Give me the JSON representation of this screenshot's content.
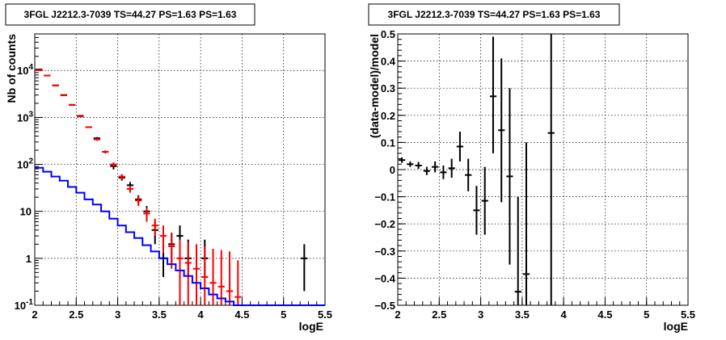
{
  "colors": {
    "data": "#000000",
    "model": "#ff0000",
    "background_model": "#0000ff"
  },
  "chart_data": [
    {
      "type": "scatter",
      "title": "3FGL J2212.3-7039 TS=44.27 PS=1.63 PS=1.63",
      "xlabel": "logE",
      "ylabel": "Nb of counts",
      "xlim": [
        2,
        5.5
      ],
      "ylim": [
        0.1,
        60000
      ],
      "yscale": "log",
      "grid": true,
      "x_ticks": [
        "2",
        "2.5",
        "3",
        "3.5",
        "4",
        "4.5",
        "5",
        "5.5"
      ],
      "y_ticks": [
        "10^-1",
        "1",
        "10",
        "10^2",
        "10^3",
        "10^4"
      ],
      "series": [
        {
          "style": "errorbars",
          "color": "#000000",
          "points": [
            {
              "x": 2.05,
              "y": 10500,
              "lo": 10300,
              "hi": 10700
            },
            {
              "x": 2.15,
              "y": 7800,
              "lo": 7650,
              "hi": 7950
            },
            {
              "x": 2.25,
              "y": 4800,
              "lo": 4680,
              "hi": 4920
            },
            {
              "x": 2.35,
              "y": 3000,
              "lo": 2920,
              "hi": 3080
            },
            {
              "x": 2.45,
              "y": 1850,
              "lo": 1800,
              "hi": 1900
            },
            {
              "x": 2.55,
              "y": 1080,
              "lo": 1040,
              "hi": 1120
            },
            {
              "x": 2.65,
              "y": 620,
              "lo": 595,
              "hi": 645
            },
            {
              "x": 2.75,
              "y": 360,
              "lo": 340,
              "hi": 380
            },
            {
              "x": 2.85,
              "y": 185,
              "lo": 172,
              "hi": 198
            },
            {
              "x": 2.95,
              "y": 92,
              "lo": 78,
              "hi": 108
            },
            {
              "x": 3.05,
              "y": 52,
              "lo": 45,
              "hi": 60
            },
            {
              "x": 3.15,
              "y": 36,
              "lo": 30,
              "hi": 42
            },
            {
              "x": 3.25,
              "y": 18,
              "lo": 14,
              "hi": 22
            },
            {
              "x": 3.35,
              "y": 10,
              "lo": 7,
              "hi": 13
            },
            {
              "x": 3.45,
              "y": 4,
              "lo": 2,
              "hi": 6
            },
            {
              "x": 3.55,
              "y": 1,
              "lo": 0.4,
              "hi": 2.5
            },
            {
              "x": 3.65,
              "y": 2,
              "lo": 0.8,
              "hi": 3.5
            },
            {
              "x": 3.75,
              "y": 3,
              "lo": 1.3,
              "hi": 5
            },
            {
              "x": 3.85,
              "y": 1,
              "lo": 0.4,
              "hi": 2.5
            },
            {
              "x": 4.05,
              "y": 1,
              "lo": 0.4,
              "hi": 2.5
            },
            {
              "x": 5.25,
              "y": 1,
              "lo": 0.2,
              "hi": 2
            }
          ]
        },
        {
          "style": "errorbars",
          "color": "#ff0000",
          "points": [
            {
              "x": 2.05,
              "y": 10200,
              "lo": 10000,
              "hi": 10400
            },
            {
              "x": 2.15,
              "y": 7800,
              "lo": 7650,
              "hi": 7950
            },
            {
              "x": 2.25,
              "y": 4800,
              "lo": 4680,
              "hi": 4920
            },
            {
              "x": 2.35,
              "y": 2950,
              "lo": 2870,
              "hi": 3030
            },
            {
              "x": 2.45,
              "y": 1850,
              "lo": 1800,
              "hi": 1900
            },
            {
              "x": 2.55,
              "y": 1050,
              "lo": 1010,
              "hi": 1090
            },
            {
              "x": 2.65,
              "y": 620,
              "lo": 595,
              "hi": 645
            },
            {
              "x": 2.75,
              "y": 340,
              "lo": 320,
              "hi": 360
            },
            {
              "x": 2.85,
              "y": 185,
              "lo": 172,
              "hi": 198
            },
            {
              "x": 2.95,
              "y": 100,
              "lo": 90,
              "hi": 110
            },
            {
              "x": 3.05,
              "y": 55,
              "lo": 48,
              "hi": 62
            },
            {
              "x": 3.15,
              "y": 30,
              "lo": 25,
              "hi": 35
            },
            {
              "x": 3.25,
              "y": 17,
              "lo": 13,
              "hi": 21
            },
            {
              "x": 3.35,
              "y": 9,
              "lo": 6,
              "hi": 12
            },
            {
              "x": 3.45,
              "y": 5,
              "lo": 3,
              "hi": 7
            },
            {
              "x": 3.55,
              "y": 3,
              "lo": 1.3,
              "hi": 5
            },
            {
              "x": 3.65,
              "y": 1.8,
              "lo": 0.6,
              "hi": 3.5
            },
            {
              "x": 3.75,
              "y": 1,
              "lo": 0.1,
              "hi": 2.5
            },
            {
              "x": 3.85,
              "y": 0.8,
              "lo": 0.1,
              "hi": 2.2
            },
            {
              "x": 3.95,
              "y": 0.6,
              "lo": 0.1,
              "hi": 2
            },
            {
              "x": 4.05,
              "y": 0.4,
              "lo": 0.1,
              "hi": 1.8
            },
            {
              "x": 4.15,
              "y": 0.3,
              "lo": 0.1,
              "hi": 1.6
            },
            {
              "x": 4.25,
              "y": 0.25,
              "lo": 0.1,
              "hi": 1.5
            },
            {
              "x": 4.35,
              "y": 0.2,
              "lo": 0.1,
              "hi": 1.4
            },
            {
              "x": 4.45,
              "y": 0.15,
              "lo": 0.1,
              "hi": 0.9
            }
          ]
        },
        {
          "style": "step",
          "color": "#0000ff",
          "bin_edges": [
            2.0,
            2.1,
            2.2,
            2.3,
            2.4,
            2.5,
            2.6,
            2.7,
            2.8,
            2.9,
            3.0,
            3.1,
            3.2,
            3.3,
            3.4,
            3.5,
            3.6,
            3.7,
            3.8,
            3.9,
            4.0,
            4.1,
            4.2,
            4.3,
            4.4,
            4.5,
            5.5
          ],
          "values": [
            85,
            70,
            55,
            45,
            33,
            25,
            18,
            14,
            10,
            7,
            5,
            3.6,
            2.7,
            1.9,
            1.4,
            1.0,
            0.75,
            0.55,
            0.42,
            0.3,
            0.23,
            0.17,
            0.14,
            0.12,
            0.1,
            0.1
          ]
        }
      ]
    },
    {
      "type": "scatter",
      "title": "3FGL J2212.3-7039 TS=44.27 PS=1.63 PS=1.63",
      "xlabel": "logE",
      "ylabel": "(data-model)/model",
      "xlim": [
        2,
        5.5
      ],
      "ylim": [
        -0.5,
        0.5
      ],
      "grid": true,
      "x_ticks": [
        "2",
        "2.5",
        "3",
        "3.5",
        "4",
        "4.5",
        "5",
        "5.5"
      ],
      "y_ticks": [
        "−0.5",
        "−0.4",
        "−0.3",
        "−0.2",
        "−0.1",
        "0",
        "0.1",
        "0.2",
        "0.3",
        "0.4",
        "0.5"
      ],
      "series": [
        {
          "style": "errorbars",
          "color": "#000000",
          "points": [
            {
              "x": 2.05,
              "y": 0.035,
              "lo": 0.025,
              "hi": 0.045
            },
            {
              "x": 2.15,
              "y": 0.02,
              "lo": 0.01,
              "hi": 0.03
            },
            {
              "x": 2.25,
              "y": 0.015,
              "lo": 0.003,
              "hi": 0.028
            },
            {
              "x": 2.35,
              "y": -0.005,
              "lo": -0.02,
              "hi": 0.01
            },
            {
              "x": 2.45,
              "y": 0.01,
              "lo": -0.01,
              "hi": 0.03
            },
            {
              "x": 2.55,
              "y": -0.01,
              "lo": -0.035,
              "hi": 0.015
            },
            {
              "x": 2.65,
              "y": 0.005,
              "lo": -0.03,
              "hi": 0.04
            },
            {
              "x": 2.75,
              "y": 0.085,
              "lo": 0.03,
              "hi": 0.14
            },
            {
              "x": 2.85,
              "y": -0.02,
              "lo": -0.08,
              "hi": 0.04
            },
            {
              "x": 2.95,
              "y": -0.15,
              "lo": -0.24,
              "hi": -0.06
            },
            {
              "x": 3.05,
              "y": -0.115,
              "lo": -0.24,
              "hi": 0.01
            },
            {
              "x": 3.15,
              "y": 0.27,
              "lo": 0.06,
              "hi": 0.49
            },
            {
              "x": 3.25,
              "y": 0.145,
              "lo": -0.12,
              "hi": 0.41
            },
            {
              "x": 3.35,
              "y": -0.025,
              "lo": -0.35,
              "hi": 0.3
            },
            {
              "x": 3.45,
              "y": -0.45,
              "lo": -0.5,
              "hi": -0.1
            },
            {
              "x": 3.55,
              "y": -0.385,
              "lo": -0.5,
              "hi": 0.1
            },
            {
              "x": 3.85,
              "y": 0.135,
              "lo": -0.5,
              "hi": 0.5
            }
          ]
        }
      ]
    }
  ]
}
